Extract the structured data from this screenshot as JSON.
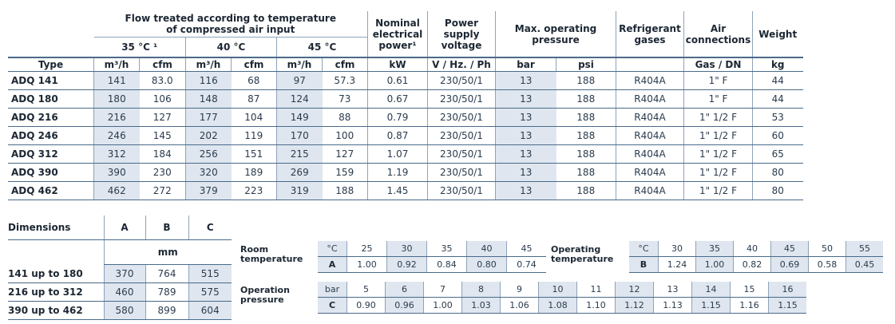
{
  "main": {
    "headers": {
      "type": "Type",
      "flow": [
        "Flow treated according to temperature",
        "of compressed air input"
      ],
      "nominal": [
        "Nominal",
        "electrical",
        "power¹"
      ],
      "power_supply": [
        "Power",
        "supply",
        "voltage"
      ],
      "max_pressure": [
        "Max. operating",
        "pressure"
      ],
      "refrigerant": [
        "Refrigerant",
        "gases"
      ],
      "air": [
        "Air",
        "connections"
      ],
      "weight": "Weight",
      "temp35": "35 °C ¹",
      "temp40": "40 °C",
      "temp45": "45 °C"
    },
    "units": [
      "m³/h",
      "cfm",
      "m³/h",
      "cfm",
      "m³/h",
      "cfm",
      "kW",
      "V / Hz. / Ph",
      "bar",
      "psi",
      "",
      "Gas / DN",
      "kg"
    ],
    "rows": [
      [
        "ADQ 141",
        "141",
        "83.0",
        "116",
        "68",
        "97",
        "57.3",
        "0.61",
        "230/50/1",
        "13",
        "188",
        "R404A",
        "1\" F",
        "44"
      ],
      [
        "ADQ 180",
        "180",
        "106",
        "148",
        "87",
        "124",
        "73",
        "0.67",
        "230/50/1",
        "13",
        "188",
        "R404A",
        "1\" F",
        "44"
      ],
      [
        "ADQ 216",
        "216",
        "127",
        "177",
        "104",
        "149",
        "88",
        "0.79",
        "230/50/1",
        "13",
        "188",
        "R404A",
        "1\" 1/2 F",
        "53"
      ],
      [
        "ADQ 246",
        "246",
        "145",
        "202",
        "119",
        "170",
        "100",
        "0.87",
        "230/50/1",
        "13",
        "188",
        "R404A",
        "1\" 1/2 F",
        "60"
      ],
      [
        "ADQ 312",
        "312",
        "184",
        "256",
        "151",
        "215",
        "127",
        "1.07",
        "230/50/1",
        "13",
        "188",
        "R404A",
        "1\" 1/2 F",
        "65"
      ],
      [
        "ADQ 390",
        "390",
        "230",
        "320",
        "189",
        "269",
        "159",
        "1.19",
        "230/50/1",
        "13",
        "188",
        "R404A",
        "1\" 1/2 F",
        "80"
      ],
      [
        "ADQ 462",
        "462",
        "272",
        "379",
        "223",
        "319",
        "188",
        "1.45",
        "230/50/1",
        "13",
        "188",
        "R404A",
        "1\" 1/2 F",
        "80"
      ]
    ]
  },
  "dimensions": {
    "title": "Dimensions",
    "cols": [
      "A",
      "B",
      "C"
    ],
    "unit": "mm",
    "rows": [
      [
        "141 up to 180",
        "370",
        "764",
        "515"
      ],
      [
        "216 up to 312",
        "460",
        "789",
        "575"
      ],
      [
        "390 up to 462",
        "580",
        "899",
        "604"
      ]
    ]
  },
  "room_temperature": {
    "label": [
      "Room",
      "temperature"
    ],
    "unit": "°C",
    "key": "A",
    "values": [
      "25",
      "30",
      "35",
      "40",
      "45"
    ],
    "factors": [
      "1.00",
      "0.92",
      "0.84",
      "0.80",
      "0.74"
    ]
  },
  "operating_temperature": {
    "label": [
      "Operating",
      "temperature"
    ],
    "unit": "°C",
    "key": "B",
    "values": [
      "30",
      "35",
      "40",
      "45",
      "50",
      "55"
    ],
    "factors": [
      "1.24",
      "1.00",
      "0.82",
      "0.69",
      "0.58",
      "0.45"
    ]
  },
  "operation_pressure": {
    "label": [
      "Operation",
      "pressure"
    ],
    "unit": "bar",
    "key": "C",
    "values": [
      "5",
      "6",
      "7",
      "8",
      "9",
      "10",
      "11",
      "12",
      "13",
      "14",
      "15",
      "16"
    ],
    "factors": [
      "0.90",
      "0.96",
      "1.00",
      "1.03",
      "1.06",
      "1.08",
      "1.10",
      "1.12",
      "1.13",
      "1.15",
      "1.16",
      "1.15"
    ]
  },
  "colors": {
    "shade": "#dfe6ef",
    "text": "#1c2733",
    "rule": "#4a6a8a"
  }
}
